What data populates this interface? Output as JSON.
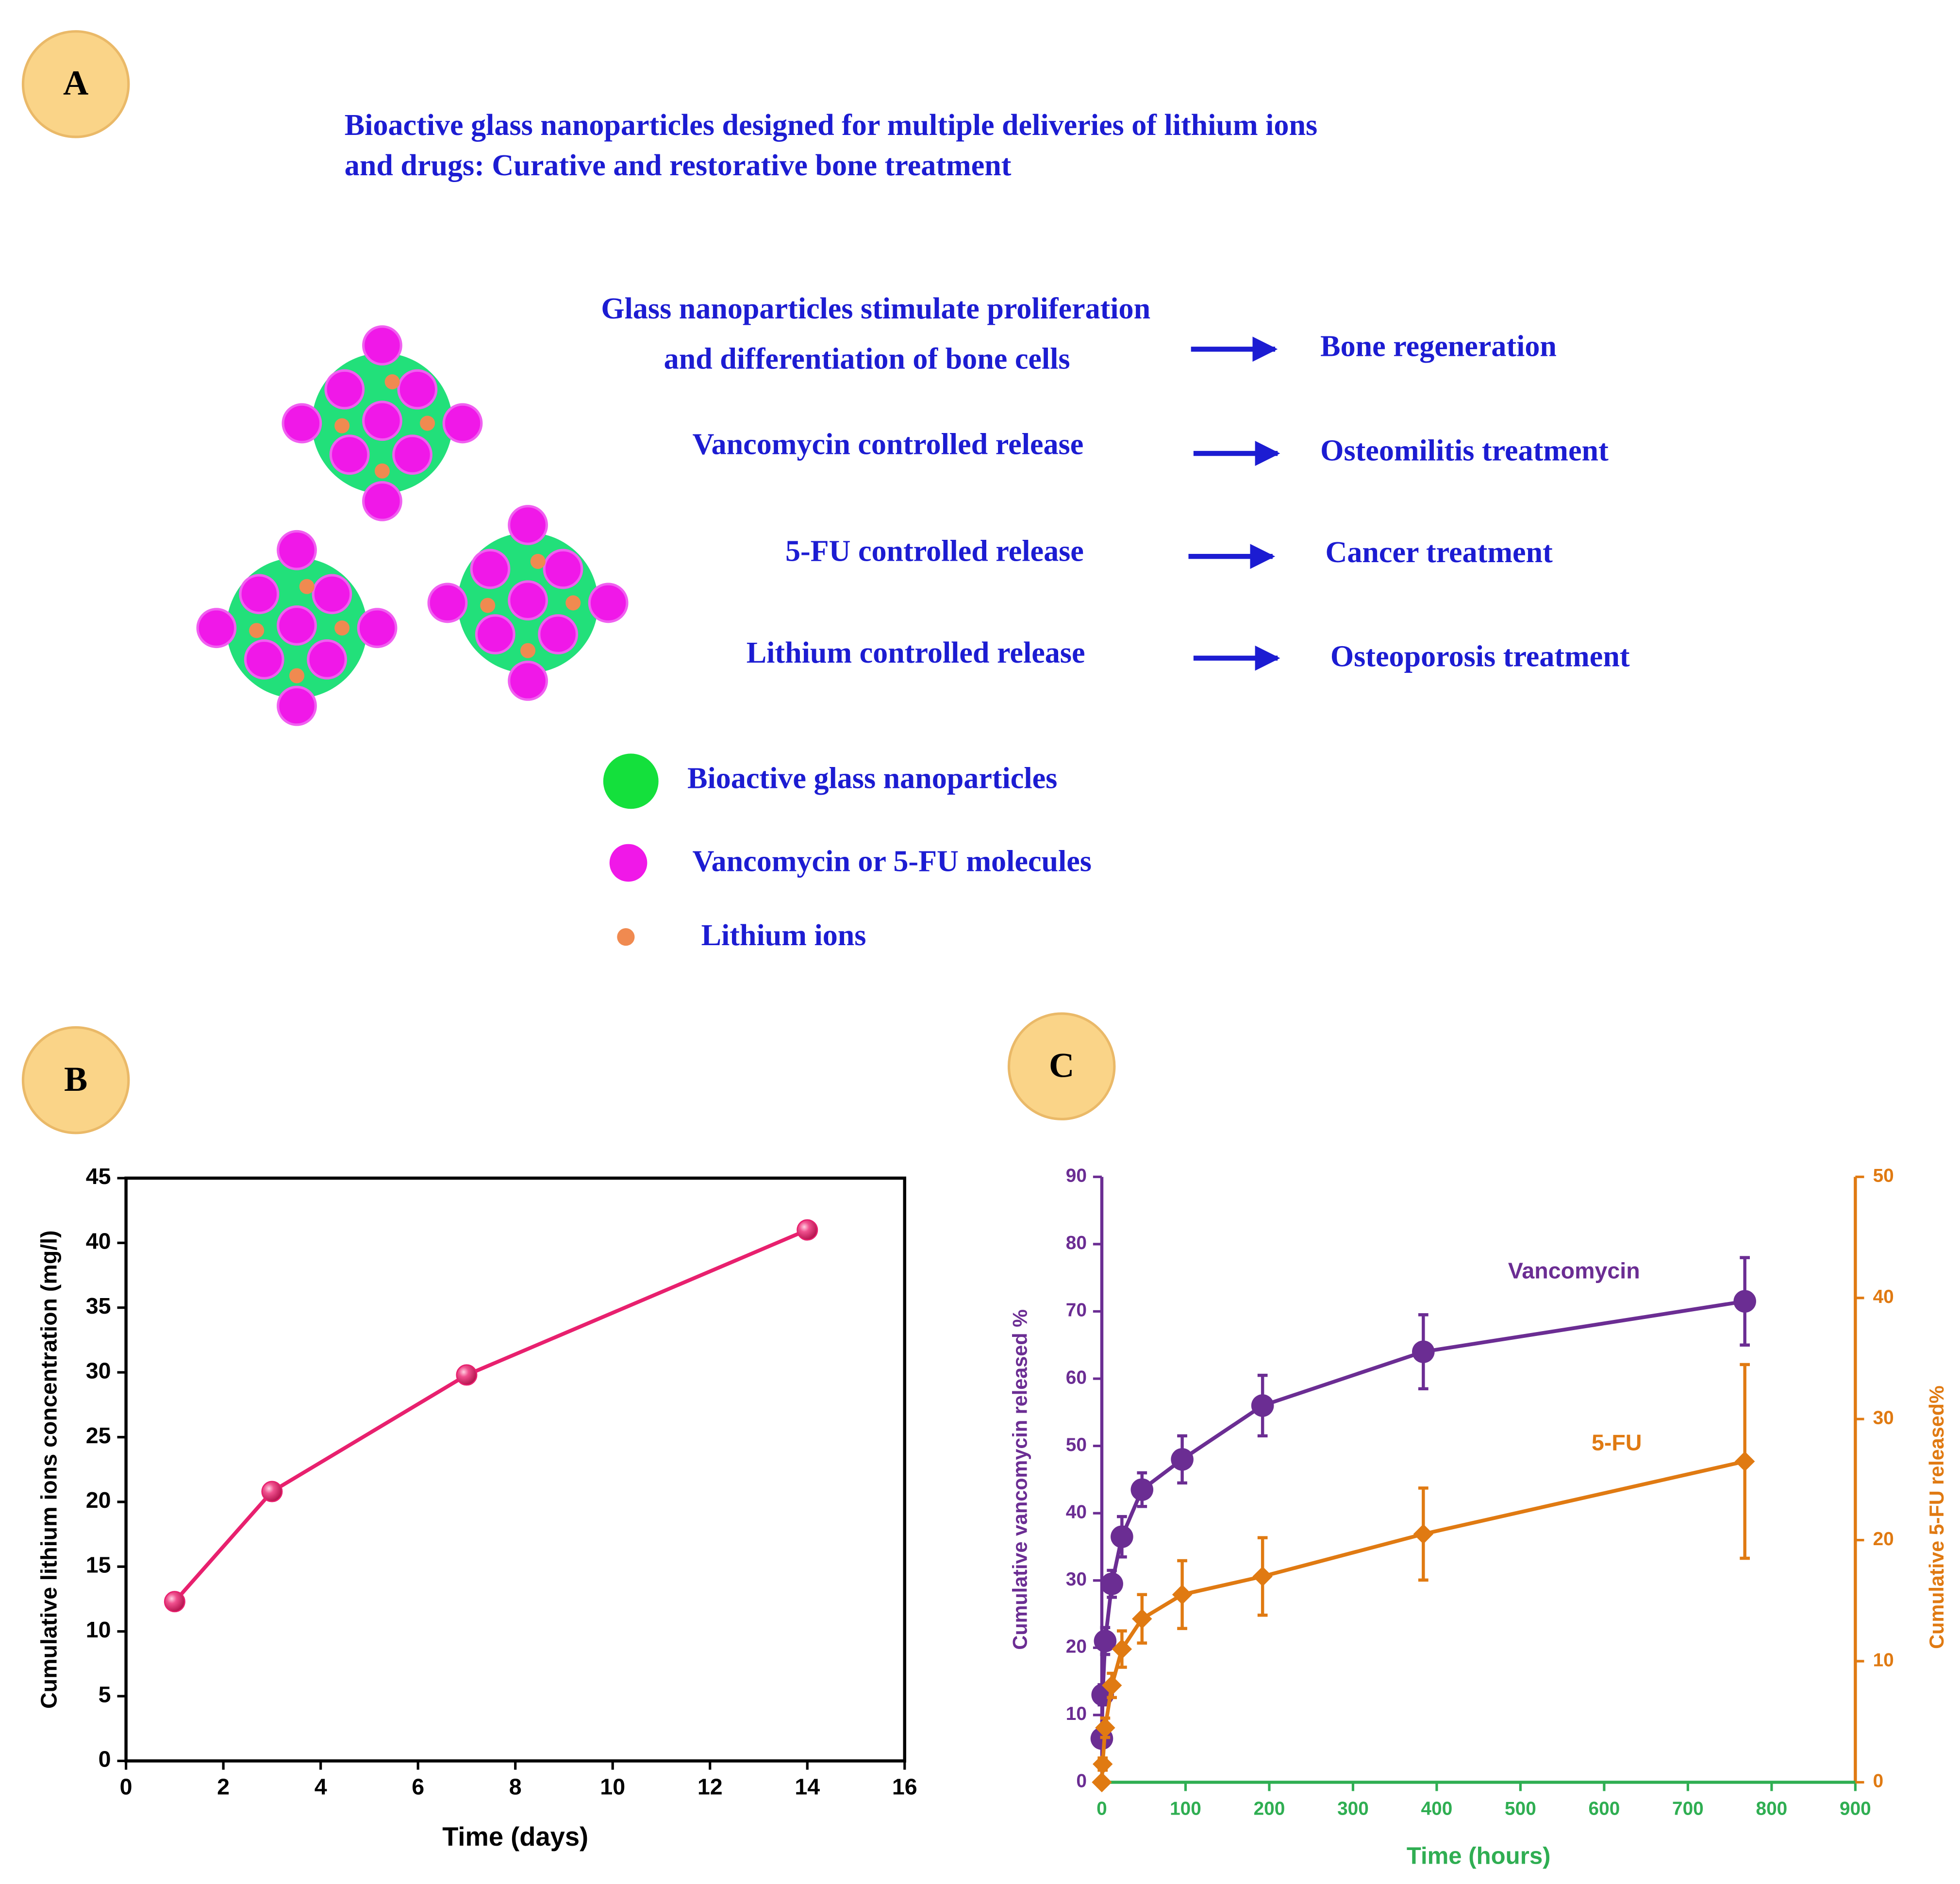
{
  "panel_a": {
    "label": "A",
    "title": [
      "Bioactive glass nanoparticles designed for multiple deliveries of lithium ions",
      "and drugs: Curative and restorative bone treatment"
    ],
    "rows": [
      {
        "cause": [
          "Glass nanoparticles stimulate proliferation",
          "and differentiation of bone cells"
        ],
        "effect": "Bone regeneration"
      },
      {
        "cause": [
          "Vancomycin controlled release"
        ],
        "effect": "Osteomilitis treatment"
      },
      {
        "cause": [
          "5-FU controlled release"
        ],
        "effect": "Cancer treatment"
      },
      {
        "cause": [
          "Lithium controlled release"
        ],
        "effect": "Osteoporosis treatment"
      }
    ],
    "legend": [
      "Bioactive glass nanoparticles",
      "Vancomycin or 5-FU molecules",
      "Lithium ions"
    ]
  },
  "chart_data": [
    {
      "type": "line",
      "panel_label": "B",
      "x_label": "Time (days)",
      "y_label": "Cumulative lithium ions concentration (mg/l)",
      "x": [
        1,
        3,
        7,
        14
      ],
      "values": [
        12.3,
        20.8,
        29.8,
        41
      ],
      "color": "#e8206e",
      "xlim": [
        0,
        16
      ],
      "xticks": [
        0,
        2,
        4,
        6,
        8,
        10,
        12,
        14,
        16
      ],
      "ylim": [
        0,
        45
      ],
      "yticks": [
        0,
        5,
        10,
        15,
        20,
        25,
        30,
        35,
        40,
        45
      ]
    },
    {
      "type": "line",
      "panel_label": "C",
      "x_label": "Time (hours)",
      "y_label": "Cumulative vancomycin released %",
      "y2_label": "Cumulative 5-FU released%",
      "x": [
        0,
        1,
        4,
        12,
        24,
        48,
        96,
        192,
        384,
        768
      ],
      "series": [
        {
          "name": "Vancomycin",
          "color": "#6b2d93",
          "marker": "circle",
          "values": [
            6.5,
            13,
            21,
            29.5,
            36.5,
            43.5,
            48,
            56,
            64,
            71.5
          ],
          "errors": [
            1,
            1.5,
            2,
            2,
            3,
            2.5,
            3.5,
            4.5,
            5.5,
            6.5
          ]
        },
        {
          "name": "5-FU",
          "color": "#e07a12",
          "marker": "diamond",
          "axis": "y2",
          "values": [
            0,
            1.5,
            4.5,
            8,
            11,
            13.5,
            15.5,
            17,
            20.5,
            26.5
          ],
          "errors": [
            0.3,
            0.5,
            0.8,
            1,
            1.5,
            2,
            2.8,
            3.2,
            3.8,
            8
          ]
        }
      ],
      "x_color": "#2fae52",
      "xlim": [
        0,
        900
      ],
      "xticks": [
        0,
        100,
        200,
        300,
        400,
        500,
        600,
        700,
        800,
        900
      ],
      "ylim": [
        0,
        90
      ],
      "yticks": [
        0,
        10,
        20,
        30,
        40,
        50,
        60,
        70,
        80,
        90
      ],
      "y2lim": [
        0,
        50
      ],
      "y2ticks": [
        0,
        10,
        20,
        30,
        40,
        50
      ]
    }
  ]
}
